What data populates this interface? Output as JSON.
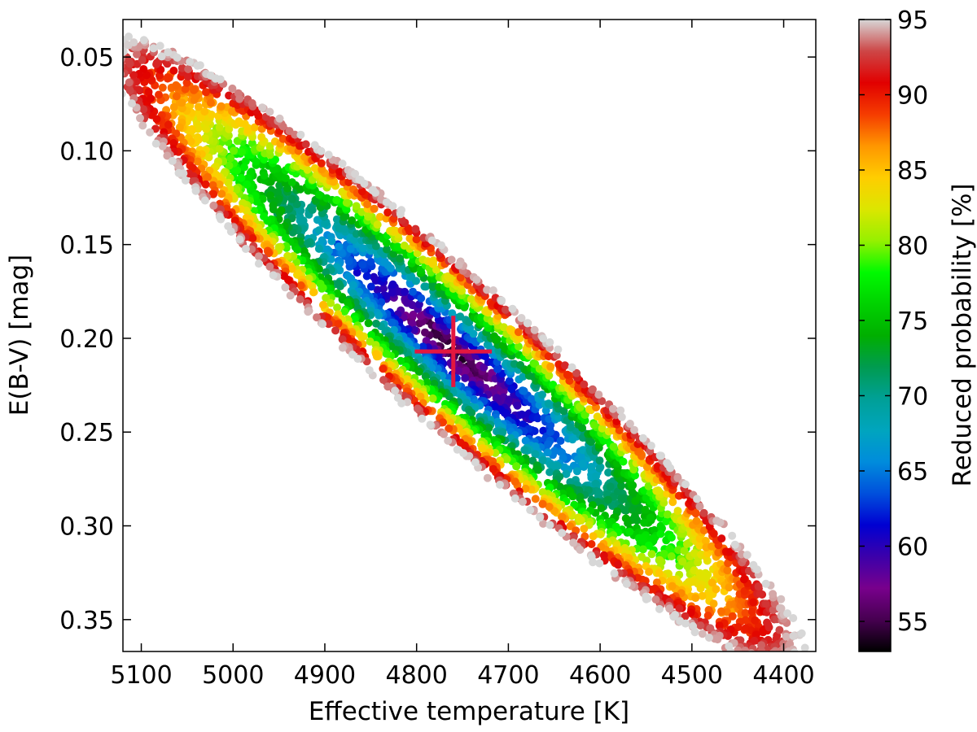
{
  "chart_data": {
    "type": "scatter",
    "title": "",
    "xlabel": "Effective temperature [K]",
    "ylabel": "E(B-V) [mag]",
    "xlim": [
      5120,
      4365
    ],
    "ylim": [
      0.367,
      0.03
    ],
    "x_reversed": true,
    "y_reversed": true,
    "x_ticks": [
      5100,
      5000,
      4900,
      4800,
      4700,
      4600,
      4500,
      4400
    ],
    "y_ticks": [
      0.05,
      0.1,
      0.15,
      0.2,
      0.25,
      0.3,
      0.35
    ],
    "grid": false,
    "colorbar": {
      "label": "Reduced probability [%]",
      "range": [
        53,
        95
      ],
      "ticks": [
        55,
        60,
        65,
        70,
        75,
        80,
        85,
        90,
        95
      ],
      "colormap": "nipy_spectral"
    },
    "distribution": {
      "center": {
        "x": 4760,
        "y": 0.207
      },
      "slope_dy_dx": -0.000425,
      "semi_major_x": 375,
      "semi_minor_y": 0.05,
      "probability_center": 53,
      "probability_edge": 95
    },
    "best_fit": {
      "x": 4760,
      "y": 0.207,
      "x_err": 42,
      "y_err": 0.019,
      "color": "#e3173f"
    }
  }
}
